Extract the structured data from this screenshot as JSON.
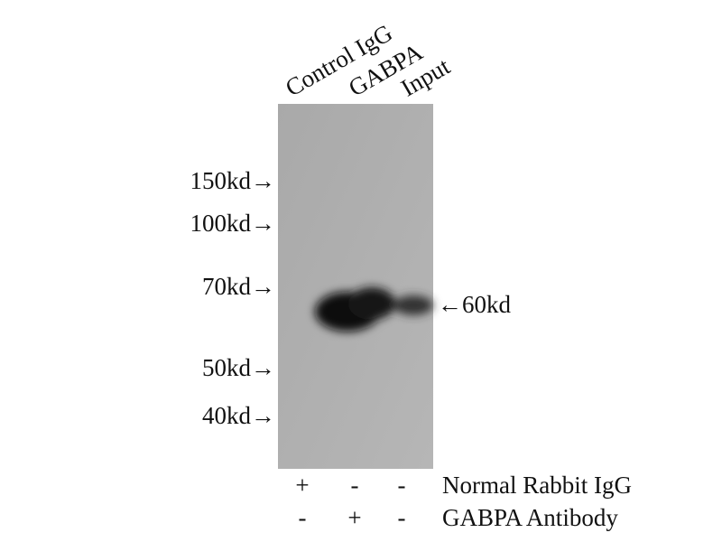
{
  "lanes": [
    "Control IgG",
    "GABPA",
    "Input"
  ],
  "markers": [
    "150kd→",
    "100kd→",
    "70kd→",
    "50kd→",
    "40kd→"
  ],
  "band_label": "←60kd",
  "rows": [
    {
      "signs": [
        "+",
        "-",
        "-"
      ],
      "label": "Normal Rabbit IgG"
    },
    {
      "signs": [
        "-",
        "+",
        "-"
      ],
      "label": "GABPA Antibody"
    }
  ]
}
